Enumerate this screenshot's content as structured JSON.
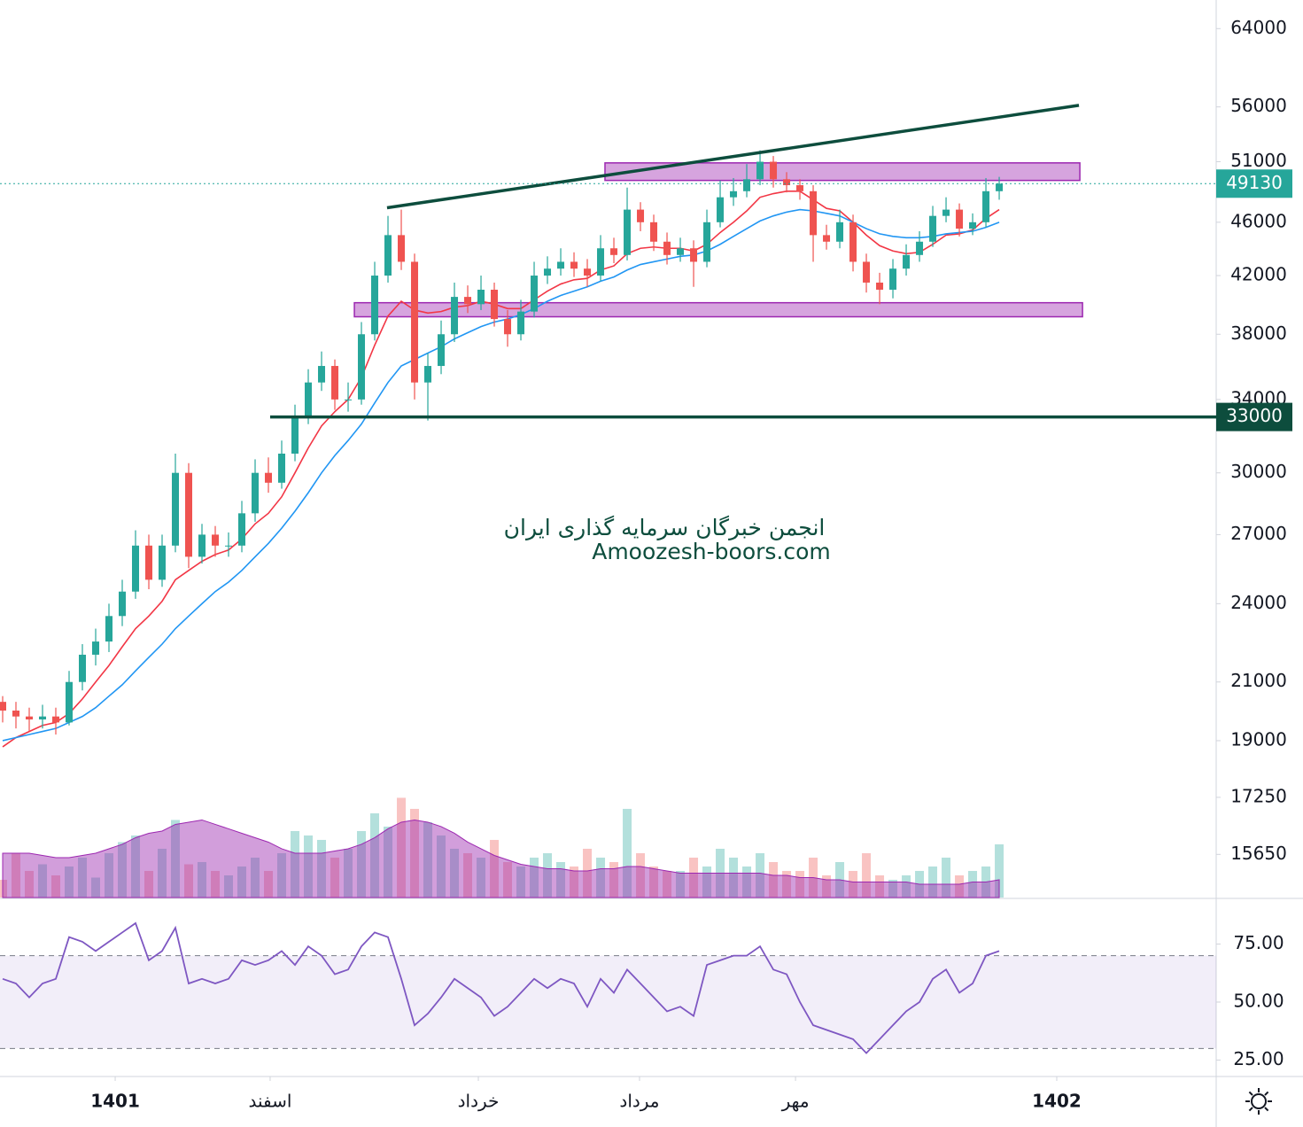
{
  "chart_data": {
    "type": "candlestick",
    "watermark": [
      "انجمن خبرگان سرمایه گذاری ایران",
      "Amoozesh-boors.com"
    ],
    "xlim": [
      -0.2,
      91.33
    ],
    "xticks": [
      {
        "value": 8.47,
        "label": "1401"
      },
      {
        "value": 20.13,
        "label": "اسفند"
      },
      {
        "value": 35.8,
        "label": "خرداد"
      },
      {
        "value": 47.93,
        "label": "مرداد"
      },
      {
        "value": 59.67,
        "label": "مهر"
      },
      {
        "value": 79.33,
        "label": "1402"
      }
    ],
    "ylim": [
      14540,
      67200
    ],
    "log_scale": true,
    "yticks": [
      64000,
      56000,
      51000,
      46000,
      42000,
      38000,
      34000,
      30000,
      27000,
      24000,
      21000,
      19000,
      17250,
      15650
    ],
    "up_color": "#26a69a",
    "down_color": "#ef5350",
    "open": [
      20300,
      20000,
      19800,
      19700,
      19800,
      19600,
      21000,
      22000,
      22500,
      23500,
      24500,
      26500,
      25000,
      26500,
      30000,
      26000,
      27000,
      26500,
      26500,
      28000,
      30000,
      29500,
      31000,
      33000,
      35000,
      36000,
      34000,
      34000,
      38000,
      42000,
      45000,
      43000,
      35000,
      36000,
      38000,
      40500,
      40000,
      41000,
      39000,
      38000,
      39500,
      42000,
      42500,
      43000,
      42500,
      42000,
      44000,
      43500,
      47000,
      46000,
      44500,
      43500,
      44000,
      43000,
      46000,
      48000,
      48500,
      49500,
      51000,
      49500,
      49000,
      48500,
      45000,
      44500,
      46000,
      43000,
      41500,
      41000,
      42500,
      43500,
      44500,
      46500,
      47000,
      45500,
      46000,
      48500
    ],
    "high": [
      20500,
      20300,
      20100,
      20200,
      20100,
      21400,
      22400,
      23000,
      24000,
      25000,
      27200,
      27000,
      27000,
      31000,
      30500,
      27500,
      27400,
      27100,
      28600,
      30700,
      30800,
      31700,
      33700,
      35800,
      36900,
      36400,
      35000,
      38800,
      43000,
      46500,
      47000,
      43600,
      36800,
      38900,
      41500,
      41300,
      42000,
      41500,
      39600,
      40300,
      43000,
      43400,
      44000,
      43700,
      43200,
      45000,
      44800,
      48800,
      47600,
      46600,
      45200,
      44800,
      44600,
      47000,
      49400,
      49600,
      50800,
      52000,
      51500,
      50100,
      49500,
      49000,
      45800,
      47000,
      46600,
      43600,
      42200,
      43200,
      44300,
      45300,
      47300,
      48000,
      47500,
      46700,
      49600,
      49700
    ],
    "low": [
      19600,
      19400,
      19300,
      19400,
      19200,
      19500,
      20700,
      21600,
      22100,
      23100,
      24200,
      24600,
      24700,
      26200,
      25500,
      25700,
      26000,
      26000,
      26200,
      27600,
      29000,
      29200,
      30600,
      32600,
      34500,
      33400,
      33300,
      33700,
      37600,
      41500,
      42400,
      34000,
      32800,
      35500,
      37500,
      39400,
      39600,
      38500,
      37200,
      37600,
      39100,
      41400,
      42000,
      41900,
      41200,
      41600,
      42900,
      43100,
      45300,
      43800,
      42800,
      43000,
      41200,
      42600,
      45600,
      47300,
      48000,
      49000,
      48800,
      48400,
      47800,
      43000,
      43900,
      44000,
      42300,
      40800,
      40000,
      40400,
      42000,
      43000,
      44100,
      46000,
      44900,
      45000,
      45600,
      47800
    ],
    "close": [
      20000,
      19800,
      19700,
      19800,
      19600,
      21000,
      22000,
      22500,
      23500,
      24500,
      26500,
      25000,
      26500,
      30000,
      26000,
      27000,
      26500,
      26500,
      28000,
      30000,
      29500,
      31000,
      33000,
      35000,
      36000,
      34000,
      34000,
      38000,
      42000,
      45000,
      43000,
      35000,
      36000,
      38000,
      40500,
      40000,
      41000,
      39000,
      38000,
      39500,
      42000,
      42500,
      43000,
      42500,
      42000,
      44000,
      43500,
      47000,
      46000,
      44500,
      43500,
      44000,
      43000,
      46000,
      48000,
      48500,
      49500,
      51000,
      49500,
      49000,
      48500,
      45000,
      44500,
      46000,
      43000,
      41500,
      41000,
      42500,
      43500,
      44500,
      46500,
      47000,
      45500,
      46000,
      48500,
      49130
    ],
    "moving_averages": [
      {
        "color": "#f23645",
        "values": [
          18800,
          19100,
          19300,
          19500,
          19600,
          19900,
          20400,
          21000,
          21600,
          22300,
          23000,
          23500,
          24100,
          25000,
          25400,
          25800,
          26100,
          26300,
          26800,
          27500,
          28000,
          28800,
          30000,
          31300,
          32500,
          33300,
          34000,
          35300,
          37300,
          39200,
          40200,
          39600,
          39400,
          39500,
          39800,
          39900,
          40200,
          40000,
          39700,
          39700,
          40300,
          40900,
          41400,
          41700,
          41800,
          42400,
          42700,
          43600,
          44000,
          44100,
          44000,
          44000,
          43800,
          44300,
          45200,
          46000,
          46900,
          48000,
          48300,
          48500,
          48500,
          47800,
          47100,
          46900,
          46000,
          45000,
          44200,
          43800,
          43600,
          43700,
          44300,
          45000,
          45100,
          45400,
          46300,
          47000
        ]
      },
      {
        "color": "#2196f3",
        "values": [
          19000,
          19100,
          19200,
          19300,
          19400,
          19600,
          19800,
          20100,
          20500,
          20900,
          21400,
          21900,
          22400,
          23000,
          23500,
          24000,
          24500,
          24900,
          25400,
          26000,
          26600,
          27300,
          28100,
          29000,
          30000,
          30900,
          31700,
          32600,
          33800,
          35000,
          36000,
          36400,
          36800,
          37200,
          37700,
          38100,
          38500,
          38800,
          39000,
          39300,
          39700,
          40200,
          40600,
          40900,
          41200,
          41600,
          41900,
          42400,
          42800,
          43000,
          43200,
          43400,
          43500,
          43800,
          44300,
          44900,
          45500,
          46100,
          46500,
          46800,
          47000,
          46900,
          46700,
          46500,
          46000,
          45500,
          45100,
          44900,
          44800,
          44800,
          44900,
          45100,
          45200,
          45300,
          45600,
          46000
        ]
      }
    ],
    "volume": {
      "ylim": [
        0,
        405
      ],
      "ma_color": "#9c27b0",
      "values": [
        8,
        20,
        12,
        15,
        10,
        14,
        18,
        9,
        20,
        25,
        28,
        12,
        22,
        35,
        15,
        16,
        12,
        10,
        14,
        18,
        12,
        20,
        30,
        28,
        26,
        18,
        22,
        30,
        38,
        32,
        45,
        40,
        34,
        28,
        22,
        20,
        18,
        26,
        16,
        14,
        18,
        20,
        16,
        14,
        22,
        18,
        16,
        40,
        20,
        14,
        12,
        12,
        18,
        14,
        22,
        18,
        14,
        20,
        16,
        12,
        12,
        18,
        10,
        16,
        12,
        20,
        10,
        8,
        10,
        12,
        14,
        18,
        10,
        12,
        14,
        24
      ],
      "ma": [
        20,
        20,
        20,
        19,
        18,
        18,
        19,
        20,
        22,
        24,
        27,
        29,
        30,
        33,
        34,
        35,
        33,
        31,
        29,
        27,
        25,
        22,
        20,
        20,
        20,
        21,
        22,
        24,
        27,
        31,
        34,
        35,
        34,
        32,
        29,
        25,
        22,
        19,
        17,
        15,
        14,
        13,
        13,
        12,
        12,
        13,
        13,
        14,
        14,
        13,
        12,
        11,
        11,
        11,
        11,
        11,
        11,
        11,
        10,
        10,
        9,
        9,
        8,
        8,
        7,
        7,
        7,
        7,
        7,
        6,
        6,
        6,
        6,
        7,
        7,
        8
      ]
    },
    "last_price": 49130,
    "last_price_color": "#26a69a",
    "levels": [
      {
        "value": 33000,
        "x_from": 20.13,
        "color": "#0d4d3d"
      }
    ],
    "zones": [
      {
        "x": [
          45.33,
          81.07
        ],
        "y": [
          49400,
          50900
        ],
        "color": "#ba68c8"
      },
      {
        "x": [
          26.47,
          81.27
        ],
        "y": [
          39150,
          40100
        ],
        "color": "#ba68c8"
      }
    ],
    "trendlines": [
      {
        "x": [
          28.93,
          81.0
        ],
        "y": [
          47150,
          56150
        ],
        "color": "#0d4d3d"
      }
    ],
    "rsi": {
      "color": "#7e57c2",
      "ylim": [
        17.9,
        94.3
      ],
      "yticks": [
        {
          "value": 75,
          "label": "75.00"
        },
        {
          "value": 50,
          "label": "50.00"
        },
        {
          "value": 25,
          "label": "25.00"
        }
      ],
      "bands": [
        30,
        70
      ],
      "values": [
        60,
        58,
        52,
        58,
        60,
        78,
        76,
        72,
        76,
        80,
        84,
        68,
        72,
        82,
        58,
        60,
        58,
        60,
        68,
        66,
        68,
        72,
        66,
        74,
        70,
        62,
        64,
        74,
        80,
        78,
        60,
        40,
        45,
        52,
        60,
        56,
        52,
        44,
        48,
        54,
        60,
        56,
        60,
        58,
        48,
        60,
        54,
        64,
        58,
        52,
        46,
        48,
        44,
        66,
        68,
        70,
        70,
        74,
        64,
        62,
        50,
        40,
        38,
        36,
        34,
        28,
        34,
        40,
        46,
        50,
        60,
        64,
        54,
        58,
        70,
        72
      ]
    }
  }
}
